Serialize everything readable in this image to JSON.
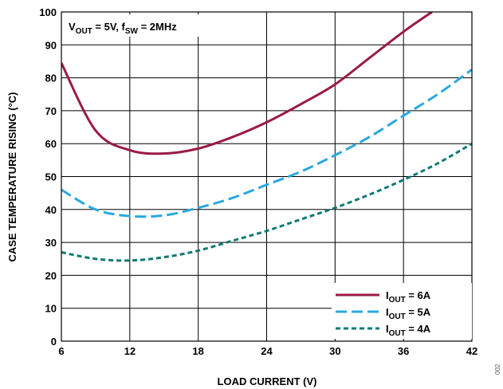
{
  "chart_data": {
    "type": "line",
    "xlabel": "LOAD CURRENT (V)",
    "ylabel": "CASE TEMPERATURE RISING (°C)",
    "xlim": [
      6,
      42
    ],
    "ylim": [
      0,
      100
    ],
    "x_ticks": [
      "6",
      "12",
      "18",
      "24",
      "30",
      "36",
      "42"
    ],
    "y_ticks": [
      "0",
      "10",
      "20",
      "30",
      "40",
      "50",
      "60",
      "70",
      "80",
      "90",
      "100"
    ],
    "grid": true,
    "legend_position": "bottom-right",
    "annotation": {
      "v_main": "V",
      "v_sub": "OUT",
      "v_rest": " = 5V,  ",
      "f_main": "f",
      "f_sub": "SW",
      "f_rest": " = 2MHz"
    },
    "figure_id": "002",
    "series": [
      {
        "label_main": "I",
        "label_sub": "OUT",
        "label_rest": " = 6A",
        "color": "#9a1b44",
        "dash": "solid",
        "x": [
          6,
          9,
          12,
          15,
          18,
          21,
          24,
          27,
          30,
          33,
          36,
          38.5
        ],
        "y": [
          84.5,
          64,
          58,
          57,
          58.5,
          62,
          66.5,
          72,
          78,
          86,
          94,
          100
        ]
      },
      {
        "label_main": "I",
        "label_sub": "OUT",
        "label_rest": " = 5A",
        "color": "#29a8df",
        "dash": "long-dash",
        "x": [
          6,
          9,
          12,
          15,
          18,
          21,
          24,
          27,
          30,
          33,
          36,
          39,
          42
        ],
        "y": [
          46,
          40,
          38,
          38.2,
          40.5,
          43.5,
          47.5,
          51.5,
          56.5,
          62,
          68.5,
          75,
          82.5
        ]
      },
      {
        "label_main": "I",
        "label_sub": "OUT",
        "label_rest": " = 4A",
        "color": "#0e7a73",
        "dash": "short-dash",
        "x": [
          6,
          9,
          12,
          15,
          18,
          21,
          24,
          27,
          30,
          33,
          36,
          39,
          42
        ],
        "y": [
          27,
          25,
          24.5,
          25.5,
          27.5,
          30.5,
          33.5,
          37,
          40.5,
          44.5,
          49,
          54,
          60
        ]
      }
    ]
  }
}
